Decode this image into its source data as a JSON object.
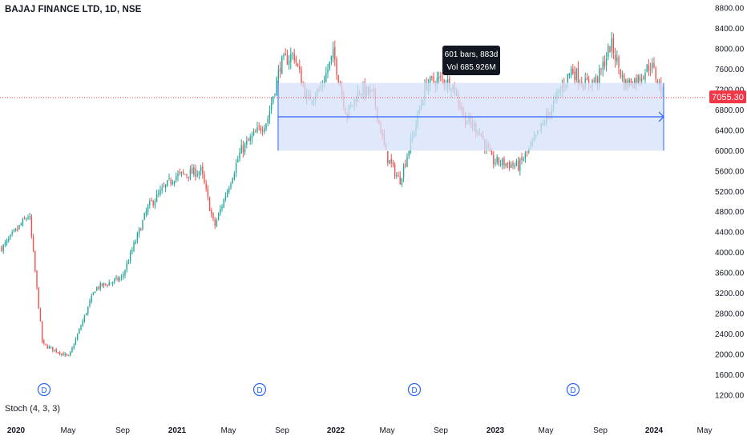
{
  "header": {
    "title": "BAJAJ FINANCE LTD, 1D, NSE"
  },
  "indicator": {
    "label": "Stoch (4, 3, 3)"
  },
  "price_tag": {
    "value": "7055.30",
    "color": "#f23645"
  },
  "measure_tooltip": {
    "line1": "601 bars, 883d",
    "line2": "Vol 685.926M"
  },
  "dividend_marker": {
    "label": "D"
  },
  "colors": {
    "up": "#26a69a",
    "down": "#ef5350",
    "range_fill": "#d6e2fb",
    "range_line": "#2962ff",
    "tooltip_bg": "#131722"
  },
  "chart_data": {
    "type": "candlestick",
    "x_ticks": [
      {
        "label": "2020",
        "bold": true
      },
      {
        "label": "May"
      },
      {
        "label": "Sep"
      },
      {
        "label": "2021",
        "bold": true
      },
      {
        "label": "May"
      },
      {
        "label": "Sep"
      },
      {
        "label": "2022",
        "bold": true
      },
      {
        "label": "May"
      },
      {
        "label": "Sep"
      },
      {
        "label": "2023",
        "bold": true
      },
      {
        "label": "May"
      },
      {
        "label": "Sep"
      },
      {
        "label": "2024",
        "bold": true
      },
      {
        "label": "May"
      }
    ],
    "y_ticks": [
      1200,
      1600,
      2000,
      2400,
      2800,
      3200,
      3600,
      4000,
      4400,
      4800,
      5200,
      5600,
      6000,
      6400,
      6800,
      7200,
      7600,
      8000,
      8400,
      8800
    ],
    "ylim": [
      1120,
      8950
    ],
    "last_price": 7055.3,
    "series": [
      {
        "date": "2019-12",
        "close": 4100
      },
      {
        "date": "2020-02",
        "close": 4750
      },
      {
        "date": "2020-03",
        "close": 2200
      },
      {
        "date": "2020-05",
        "close": 1950
      },
      {
        "date": "2020-07",
        "close": 3300
      },
      {
        "date": "2020-09",
        "close": 3500
      },
      {
        "date": "2020-11",
        "close": 4900
      },
      {
        "date": "2021-01",
        "close": 5500
      },
      {
        "date": "2021-03",
        "close": 5600
      },
      {
        "date": "2021-04",
        "close": 4500
      },
      {
        "date": "2021-06",
        "close": 6000
      },
      {
        "date": "2021-08",
        "close": 6600
      },
      {
        "date": "2021-09",
        "close": 7700
      },
      {
        "date": "2021-10",
        "close": 7900
      },
      {
        "date": "2021-11",
        "close": 7000
      },
      {
        "date": "2021-12",
        "close": 7200
      },
      {
        "date": "2022-01",
        "close": 7900
      },
      {
        "date": "2022-02",
        "close": 6700
      },
      {
        "date": "2022-03",
        "close": 7200
      },
      {
        "date": "2022-04",
        "close": 7100
      },
      {
        "date": "2022-05",
        "close": 5900
      },
      {
        "date": "2022-06",
        "close": 5400
      },
      {
        "date": "2022-07",
        "close": 6300
      },
      {
        "date": "2022-08",
        "close": 7300
      },
      {
        "date": "2022-09",
        "close": 7400
      },
      {
        "date": "2022-10",
        "close": 7300
      },
      {
        "date": "2022-11",
        "close": 6600
      },
      {
        "date": "2022-12",
        "close": 6400
      },
      {
        "date": "2023-01",
        "close": 5800
      },
      {
        "date": "2023-03",
        "close": 5700
      },
      {
        "date": "2023-04",
        "close": 6100
      },
      {
        "date": "2023-06",
        "close": 7100
      },
      {
        "date": "2023-07",
        "close": 7600
      },
      {
        "date": "2023-08",
        "close": 7300
      },
      {
        "date": "2023-09",
        "close": 7400
      },
      {
        "date": "2023-10",
        "close": 8100
      },
      {
        "date": "2023-11",
        "close": 7300
      },
      {
        "date": "2023-12",
        "close": 7400
      },
      {
        "date": "2024-01",
        "close": 7700
      },
      {
        "date": "2024-02",
        "close": 7055.3
      }
    ],
    "range_measure": {
      "from": "2021-08",
      "to": "2024-02",
      "low": 6000,
      "high": 7330,
      "bars": 601,
      "days": 883,
      "volume": "685.926M"
    },
    "dividends": [
      "2020-03",
      "2021-07",
      "2022-07",
      "2023-07"
    ]
  }
}
